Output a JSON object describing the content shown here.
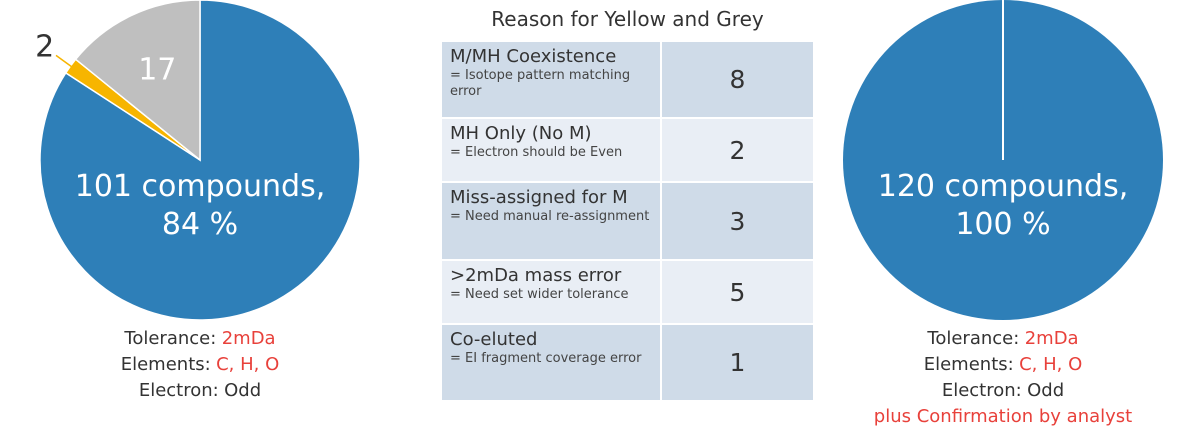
{
  "chart_data": [
    {
      "type": "pie",
      "values": [
        101,
        2,
        17
      ],
      "value_labels": [
        "101 compounds, 84 %",
        "2",
        "17"
      ],
      "colors": [
        "#2e7fb8",
        "#f7b500",
        "#bfbfbf"
      ],
      "caption": [
        {
          "label": "Tolerance:",
          "value": "2mDa",
          "color": "#e8413b"
        },
        {
          "label": "Elements:",
          "value": "C, H, O",
          "color": "#e8413b"
        },
        {
          "label": "Electron:",
          "value": "Odd",
          "color": "#333333"
        }
      ]
    },
    {
      "type": "pie",
      "values": [
        120
      ],
      "value_labels": [
        "120 compounds, 100 %"
      ],
      "colors": [
        "#2e7fb8"
      ],
      "caption": [
        {
          "label": "Tolerance:",
          "value": "2mDa",
          "color": "#e8413b"
        },
        {
          "label": "Elements:",
          "value": "C, H, O",
          "color": "#e8413b"
        },
        {
          "label": "Electron:",
          "value": "Odd",
          "color": "#333333"
        }
      ],
      "note": "plus Confirmation by analyst"
    }
  ],
  "table": {
    "title": "Reason for Yellow and Grey",
    "rows": [
      {
        "reason": "M/MH Coexistence",
        "detail": "= Isotope pattern matching error",
        "count": 8
      },
      {
        "reason": "MH Only (No M)",
        "detail": "= Electron should be Even",
        "count": 2
      },
      {
        "reason": "Miss-assigned for M",
        "detail": "= Need manual re-assignment",
        "count": 3
      },
      {
        "reason": ">2mDa mass error",
        "detail": "= Need set wider tolerance",
        "count": 5
      },
      {
        "reason": "Co-eluted",
        "detail": "= EI fragment coverage error",
        "count": 1
      }
    ]
  }
}
